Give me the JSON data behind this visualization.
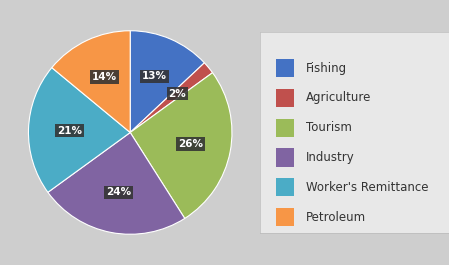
{
  "labels": [
    "Fishing",
    "Agriculture",
    "Tourism",
    "Industry",
    "Worker's Remittance",
    "Petroleum"
  ],
  "values": [
    13,
    2,
    26,
    24,
    21,
    14
  ],
  "colors": [
    "#4472C4",
    "#C0504D",
    "#9BBB59",
    "#8064A2",
    "#4BACC6",
    "#F79646"
  ],
  "pct_labels": [
    "13%",
    "2%",
    "26%",
    "24%",
    "21%",
    "14%"
  ],
  "background_color": "#CECECE",
  "legend_bg": "#E8E8E8",
  "startangle": 90,
  "label_fontsize": 7.5,
  "legend_fontsize": 8.5
}
